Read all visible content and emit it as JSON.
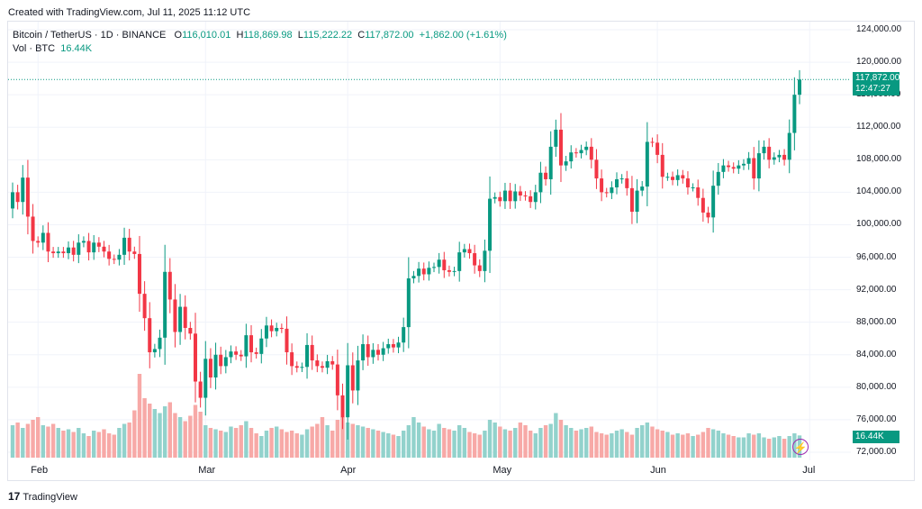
{
  "header": {
    "created_text": "Created with TradingView.com, Jul 11, 2025 11:12 UTC"
  },
  "legend": {
    "symbol": "Bitcoin / TetherUS · 1D · BINANCE",
    "o_label": "O",
    "o_value": "116,010.01",
    "h_label": "H",
    "h_value": "118,869.98",
    "l_label": "L",
    "l_value": "115,222.22",
    "c_label": "C",
    "c_value": "117,872.00",
    "change": "+1,862.00 (+1.61%)",
    "vol_label": "Vol · BTC",
    "vol_value": "16.44K"
  },
  "price_tag": {
    "price": "117,872.00",
    "countdown": "12:47:27"
  },
  "vol_tag": "16.44K",
  "footer": {
    "brand": "TradingView",
    "logo_text": "17"
  },
  "colors": {
    "up": "#089981",
    "down": "#f23645",
    "up_vol": "#92d2cc",
    "down_vol": "#f7a9a7",
    "grid": "#f0f3fa"
  },
  "chart_data": {
    "type": "candlestick",
    "y_ticks": [
      "124,000.00",
      "120,000.00",
      "116,000.00",
      "112,000.00",
      "108,000.00",
      "104,000.00",
      "100,000.00",
      "96,000.00",
      "92,000.00",
      "88,000.00",
      "84,000.00",
      "80,000.00",
      "76,000.00",
      "72,000.00"
    ],
    "y_range": [
      71000,
      125000
    ],
    "x_ticks": [
      "Feb",
      "Mar",
      "Apr",
      "May",
      "Jun",
      "Jul"
    ],
    "last_price": 117872,
    "closes": [
      104000,
      102800,
      105800,
      101000,
      98000,
      97800,
      99000,
      96700,
      96500,
      96700,
      96500,
      97200,
      96300,
      97800,
      98000,
      96600,
      97800,
      97300,
      96700,
      95800,
      95700,
      96300,
      98400,
      96700,
      96400,
      91500,
      88500,
      84300,
      84700,
      86100,
      94200,
      90800,
      86800,
      89900,
      87300,
      86600,
      80700,
      78700,
      83500,
      81200,
      84000,
      82600,
      83700,
      84400,
      84000,
      83800,
      86400,
      84300,
      84100,
      86000,
      87600,
      86900,
      87300,
      87200,
      84300,
      82600,
      82400,
      82500,
      85200,
      83300,
      82600,
      82400,
      83200,
      82800,
      79000,
      76300,
      82700,
      79600,
      83300,
      85300,
      83700,
      84600,
      84000,
      84800,
      85300,
      84900,
      85500,
      87400,
      93400,
      93700,
      94600,
      93900,
      94700,
      94800,
      95700,
      94400,
      94200,
      94300,
      96600,
      97000,
      96500,
      95000,
      94300,
      96800,
      103200,
      103400,
      102900,
      104200,
      102900,
      104100,
      103600,
      103500,
      102800,
      104000,
      106400,
      105600,
      109600,
      111700,
      107300,
      107800,
      108900,
      108800,
      109200,
      109600,
      108000,
      105700,
      104000,
      103900,
      104600,
      105600,
      105700,
      104500,
      101600,
      104200,
      104700,
      110200,
      110100,
      108600,
      105900,
      105900,
      105500,
      106100,
      105700,
      104600,
      104600,
      103300,
      101500,
      100900,
      104800,
      106500,
      107300,
      107100,
      106900,
      107300,
      107500,
      108200,
      105700,
      108800,
      109600,
      108000,
      108300,
      108600,
      108000,
      111300,
      116000,
      117872
    ],
    "volumes": [
      24,
      26,
      22,
      25,
      28,
      30,
      24,
      23,
      25,
      22,
      20,
      21,
      19,
      22,
      18,
      16,
      20,
      19,
      21,
      18,
      17,
      22,
      25,
      26,
      35,
      62,
      44,
      40,
      36,
      33,
      38,
      41,
      33,
      30,
      27,
      31,
      39,
      34,
      24,
      22,
      21,
      20,
      19,
      23,
      22,
      24,
      27,
      22,
      18,
      16,
      20,
      22,
      23,
      21,
      19,
      20,
      18,
      17,
      21,
      23,
      25,
      30,
      24,
      20,
      28,
      30,
      26,
      25,
      24,
      23,
      22,
      21,
      20,
      19,
      18,
      17,
      16,
      20,
      24,
      30,
      26,
      23,
      21,
      20,
      25,
      22,
      21,
      20,
      24,
      22,
      19,
      18,
      17,
      20,
      28,
      26,
      23,
      21,
      20,
      22,
      26,
      24,
      20,
      18,
      22,
      24,
      25,
      33,
      28,
      24,
      22,
      20,
      21,
      22,
      23,
      19,
      18,
      17,
      18,
      20,
      21,
      19,
      17,
      22,
      24,
      26,
      23,
      21,
      20,
      19,
      17,
      18,
      17,
      18,
      16,
      17,
      19,
      22,
      21,
      20,
      18,
      17,
      16,
      15,
      15,
      18,
      17,
      18,
      15,
      14,
      15,
      16,
      14,
      16,
      18,
      16.44
    ]
  }
}
